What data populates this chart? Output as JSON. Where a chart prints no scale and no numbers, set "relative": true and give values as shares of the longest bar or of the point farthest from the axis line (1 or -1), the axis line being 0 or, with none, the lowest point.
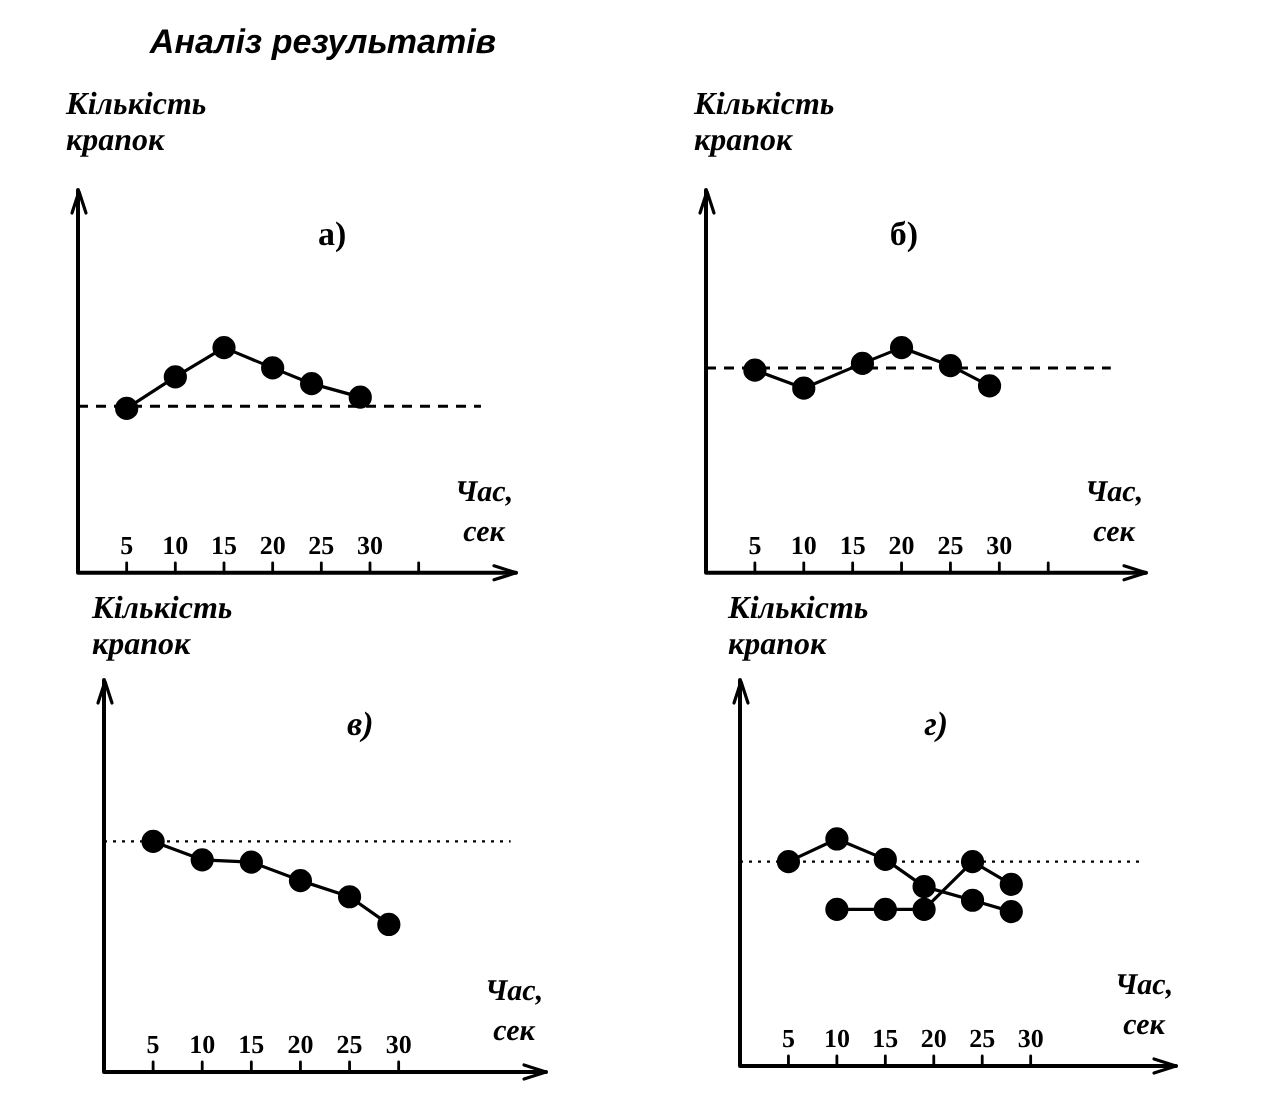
{
  "chart_data": [
    {
      "type": "line",
      "title": "Аналіз результатів",
      "xlabel": "Час, сек",
      "ylabel": "Кількість крапок",
      "annotations": [
        "а)"
      ],
      "relative": true,
      "xlim": [
        0,
        45
      ],
      "xticks": [
        5,
        10,
        15,
        20,
        25,
        30,
        {
          "value": 35,
          "label": null
        }
      ],
      "marker": "circle",
      "line_style": "solid",
      "ref_lines": [
        {
          "axis": "y",
          "value": 0.74,
          "color": "#000000",
          "line_style": "dashed"
        }
      ],
      "series": [
        {
          "color": "#000000",
          "x": [
            5,
            10,
            15,
            20,
            24,
            29
          ],
          "values": [
            0.73,
            0.87,
            1,
            0.91,
            0.84,
            0.78
          ]
        }
      ]
    },
    {
      "type": "line",
      "xlabel": "Час, сек",
      "ylabel": "Кількість крапок",
      "annotations": [
        "б)"
      ],
      "relative": true,
      "xlim": [
        0,
        45
      ],
      "xticks": [
        5,
        10,
        15,
        20,
        25,
        30,
        {
          "value": 35,
          "label": null
        }
      ],
      "marker": "circle",
      "line_style": "solid",
      "ref_lines": [
        {
          "axis": "y",
          "value": 0.91,
          "color": "#000000",
          "line_style": "dashed"
        }
      ],
      "series": [
        {
          "color": "#000000",
          "x": [
            5,
            10,
            16,
            20,
            25,
            29
          ],
          "values": [
            0.9,
            0.82,
            0.93,
            1,
            0.92,
            0.83
          ]
        }
      ]
    },
    {
      "type": "line",
      "xlabel": "Час, сек",
      "ylabel": "Кількість крапок",
      "annotations": [
        "в)"
      ],
      "relative": true,
      "xlim": [
        0,
        45
      ],
      "xticks": [
        5,
        10,
        15,
        20,
        25,
        30
      ],
      "marker": "circle",
      "line_style": "solid",
      "ref_lines": [
        {
          "axis": "y",
          "value": 1,
          "color": "#000000",
          "line_style": "dotted"
        }
      ],
      "series": [
        {
          "color": "#000000",
          "x": [
            5,
            10,
            15,
            20,
            25,
            29
          ],
          "values": [
            1,
            0.92,
            0.91,
            0.83,
            0.76,
            0.64
          ]
        }
      ]
    },
    {
      "type": "line",
      "xlabel": "Час, сек",
      "ylabel": "Кількість крапок",
      "annotations": [
        "г)"
      ],
      "relative": true,
      "xlim": [
        0,
        45
      ],
      "xticks": [
        5,
        10,
        15,
        20,
        25,
        30
      ],
      "marker": "circle",
      "line_style": "solid",
      "ref_lines": [
        {
          "axis": "y",
          "value": 0.9,
          "color": "#000000",
          "line_style": "dotted"
        }
      ],
      "series": [
        {
          "color": "#000000",
          "x": [
            5,
            10,
            15,
            19,
            24,
            28
          ],
          "values": [
            0.9,
            1,
            0.91,
            0.79,
            0.73,
            0.68
          ]
        },
        {
          "color": "#000000",
          "x": [
            10,
            15,
            19,
            24,
            28
          ],
          "values": [
            0.69,
            0.69,
            0.69,
            0.9,
            0.8
          ]
        }
      ]
    }
  ]
}
